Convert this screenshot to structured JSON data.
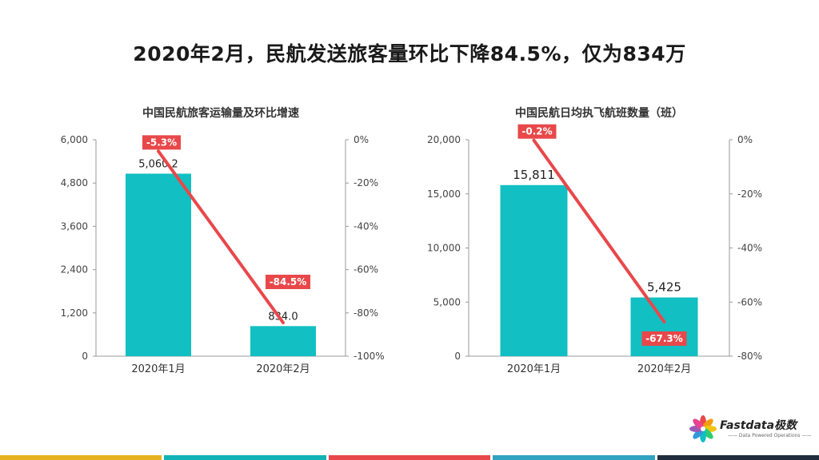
{
  "title": "2020年2月，民航发送旅客量环比下降84.5%，仅为834万",
  "colors": {
    "bar": "#12bfc2",
    "line": "#e8484a",
    "axis": "#999999"
  },
  "chart_data": [
    {
      "type": "bar",
      "title": "中国民航旅客运输量及环比增速",
      "categories": [
        "2020年1月",
        "2020年2月"
      ],
      "values": [
        5060.2,
        834.0
      ],
      "value_labels": [
        "5,060.2",
        "834.0"
      ],
      "ylim": [
        0,
        6000
      ],
      "yticks": [
        0,
        1200,
        2400,
        3600,
        4800,
        6000
      ],
      "ytick_labels": [
        "0",
        "1,200",
        "2,400",
        "3,600",
        "4,800",
        "6,000"
      ],
      "secondary": {
        "type": "line",
        "values": [
          -5.3,
          -84.5
        ],
        "value_labels": [
          "-5.3%",
          "-84.5%"
        ],
        "ylim": [
          -100,
          0
        ],
        "yticks": [
          0,
          -20,
          -40,
          -60,
          -80,
          -100
        ],
        "ytick_labels": [
          "0%",
          "-20%",
          "-40%",
          "-60%",
          "-80%",
          "-100%"
        ]
      }
    },
    {
      "type": "bar",
      "title": "中国民航日均执飞航班数量（班）",
      "categories": [
        "2020年1月",
        "2020年2月"
      ],
      "values": [
        15811,
        5425
      ],
      "value_labels": [
        "15,811",
        "5,425"
      ],
      "ylim": [
        0,
        20000
      ],
      "yticks": [
        0,
        5000,
        10000,
        15000,
        20000
      ],
      "ytick_labels": [
        "0",
        "5,000",
        "10,000",
        "15,000",
        "20,000"
      ],
      "secondary": {
        "type": "line",
        "values": [
          -0.2,
          -67.3
        ],
        "value_labels": [
          "-0.2%",
          "-67.3%"
        ],
        "ylim": [
          -80,
          0
        ],
        "yticks": [
          0,
          -20,
          -40,
          -60,
          -80
        ],
        "ytick_labels": [
          "0%",
          "-20%",
          "-40%",
          "-60%",
          "-80%"
        ]
      }
    }
  ],
  "logo": {
    "name": "Fastdata极数",
    "tagline": "—— Data Powered Operations ——"
  },
  "bottom_bar_colors": [
    "#e5b320",
    "#12b3b5",
    "#e8484a",
    "#2fa3c0",
    "#1f2d3d"
  ]
}
